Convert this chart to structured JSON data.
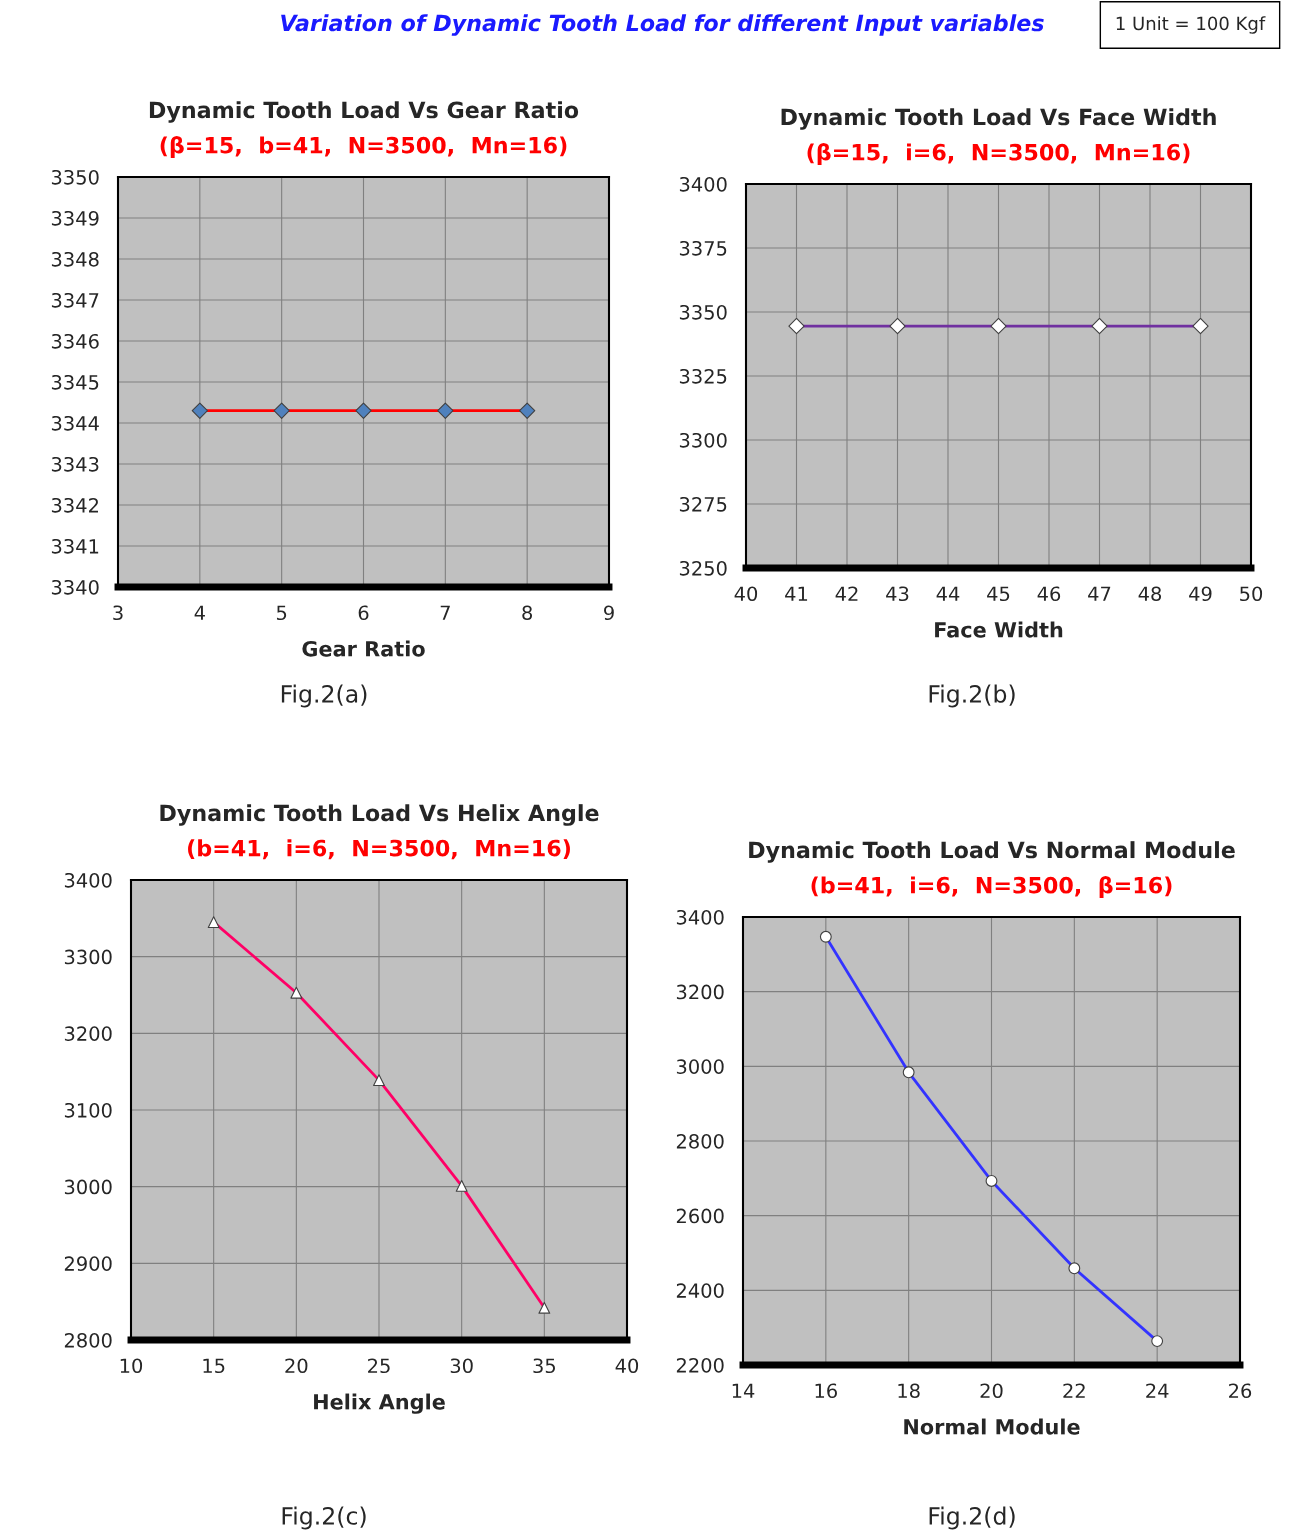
{
  "chart_data": [
    {
      "type": "line",
      "title": "Dynamic Tooth Load Vs Gear Ratio",
      "subtitle": "(β=15,  b=41,  N=3500,  Mn=16)",
      "xlabel": "Gear Ratio",
      "x": [
        4,
        5,
        6,
        7,
        8
      ],
      "series": [
        {
          "color": "#ff0000",
          "colors": [
            "#4f81bd",
            "#4f81bd",
            "#4f81bd",
            "#4f81bd",
            "#4f81bd"
          ],
          "values": [
            3344.3,
            3344.3,
            3344.3,
            3344.3,
            3344.3
          ]
        }
      ],
      "xlim": [
        3,
        9
      ],
      "xticks": [
        3,
        4,
        5,
        6,
        7,
        8,
        9
      ],
      "ylim": [
        3340,
        3350
      ],
      "yticks": [
        3340,
        3341,
        3342,
        3343,
        3344,
        3345,
        3346,
        3347,
        3348,
        3349,
        3350
      ],
      "grid": true,
      "marker": "diamond",
      "line_style": "solid",
      "annotations": [
        "Variation of Dynamic Tooth Load for different Input variables",
        "1 Unit = 100 Kgf",
        "Fig.2(a)"
      ]
    },
    {
      "type": "line",
      "title": "Dynamic Tooth Load Vs Face Width",
      "subtitle": "(β=15,  i=6,  N=3500,  Mn=16)",
      "xlabel": "Face Width",
      "x": [
        41,
        43,
        45,
        47,
        49
      ],
      "series": [
        {
          "color": "#7030a0",
          "colors": [
            "#ffffff",
            "#ffffff",
            "#ffffff",
            "#ffffff",
            "#ffffff"
          ],
          "values": [
            3344.5,
            3344.5,
            3344.5,
            3344.5,
            3344.5
          ]
        }
      ],
      "xlim": [
        40,
        50
      ],
      "xticks": [
        40,
        41,
        42,
        43,
        44,
        45,
        46,
        47,
        48,
        49,
        50
      ],
      "ylim": [
        3250,
        3400
      ],
      "yticks": [
        3250,
        3275,
        3300,
        3325,
        3350,
        3375,
        3400
      ],
      "grid": true,
      "marker": "diamond",
      "line_style": "solid",
      "annotations": [
        "Fig.2(b)"
      ]
    },
    {
      "type": "line",
      "title": "Dynamic Tooth Load Vs Helix Angle",
      "subtitle": "(b=41,  i=6,  N=3500,  Mn=16)",
      "xlabel": "Helix Angle",
      "x": [
        15,
        20,
        25,
        30,
        35
      ],
      "series": [
        {
          "color": "#ff0066",
          "colors": [
            "#ffffff",
            "#ffffff",
            "#ffffff",
            "#ffffff",
            "#ffffff"
          ],
          "values": [
            3345,
            3253,
            3139,
            3001,
            2842
          ]
        }
      ],
      "xlim": [
        10,
        40
      ],
      "xticks": [
        10,
        15,
        20,
        25,
        30,
        35,
        40
      ],
      "ylim": [
        2800,
        3400
      ],
      "yticks": [
        2800,
        2900,
        3000,
        3100,
        3200,
        3300,
        3400
      ],
      "grid": true,
      "marker": "triangle",
      "line_style": "solid",
      "annotations": [
        "Fig.2(c)"
      ]
    },
    {
      "type": "line",
      "title": "Dynamic Tooth Load Vs Normal Module",
      "subtitle": "(b=41,  i=6,  N=3500,  β=16)",
      "xlabel": "Normal Module",
      "x": [
        16,
        18,
        20,
        22,
        24
      ],
      "series": [
        {
          "color": "#3333ff",
          "colors": [
            "#ffffff",
            "#ffffff",
            "#ffffff",
            "#ffffff",
            "#ffffff"
          ],
          "values": [
            3347,
            2984,
            2693,
            2459,
            2264
          ]
        }
      ],
      "xlim": [
        14,
        26
      ],
      "xticks": [
        14,
        16,
        18,
        20,
        22,
        24,
        26
      ],
      "ylim": [
        2200,
        3400
      ],
      "yticks": [
        2200,
        2400,
        2600,
        2800,
        3000,
        3200,
        3400
      ],
      "grid": true,
      "marker": "circle",
      "line_style": "solid",
      "annotations": [
        "Fig.2(d)"
      ]
    }
  ]
}
